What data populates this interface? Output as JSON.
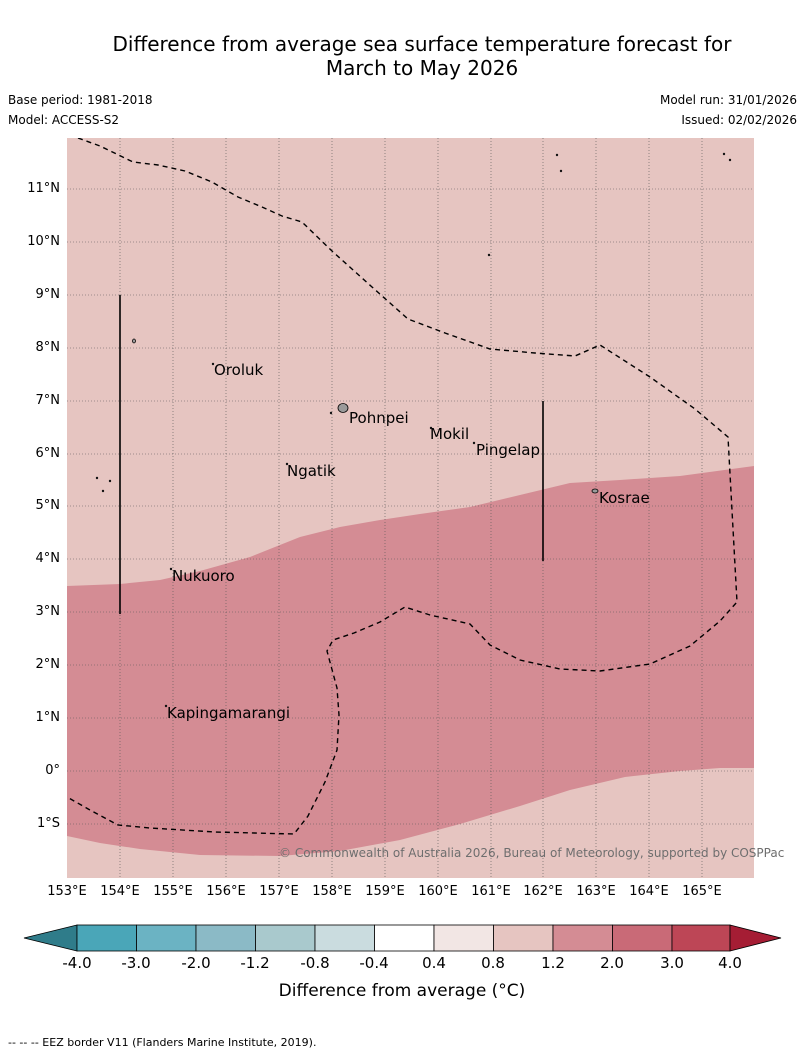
{
  "title": {
    "line1": "Difference from average sea surface temperature forecast for",
    "line2": "March to May 2026"
  },
  "meta": {
    "base_period": "Base period: 1981-2018",
    "model": "Model: ACCESS-S2",
    "model_run": "Model run: 31/01/2026",
    "issued": "Issued: 02/02/2026"
  },
  "map": {
    "lat_labels": [
      "11°N",
      "10°N",
      "9°N",
      "8°N",
      "7°N",
      "6°N",
      "5°N",
      "4°N",
      "3°N",
      "2°N",
      "1°N",
      "0°",
      "1°S"
    ],
    "lon_labels": [
      "153°E",
      "154°E",
      "155°E",
      "156°E",
      "157°E",
      "158°E",
      "159°E",
      "160°E",
      "161°E",
      "162°E",
      "163°E",
      "164°E",
      "165°E"
    ],
    "places": [
      "Oroluk",
      "Pohnpei",
      "Mokil",
      "Pingelap",
      "Ngatik",
      "Kosrae",
      "Nukuoro",
      "Kapingamarangi"
    ],
    "copyright": "© Commonwealth of Australia 2026, Bureau of Meteorology, supported by COSPPac"
  },
  "colorbar": {
    "ticks": [
      "-4.0",
      "-3.0",
      "-2.0",
      "-1.2",
      "-0.8",
      "-0.4",
      "0.4",
      "0.8",
      "1.2",
      "2.0",
      "3.0",
      "4.0"
    ],
    "colors": [
      "#2f7c8a",
      "#4aa6b8",
      "#6bb3c3",
      "#8bbac6",
      "#a9c9cd",
      "#cadcdf",
      "#ffffff",
      "#f2e6e4",
      "#e6c5c1",
      "#d48c94",
      "#c96a77",
      "#bd4656",
      "#a51d34"
    ],
    "label": "Difference from average (°C)"
  },
  "legend": {
    "eez": "--  --  -- EEZ border V11 (Flanders Marine Institute, 2019)."
  }
}
